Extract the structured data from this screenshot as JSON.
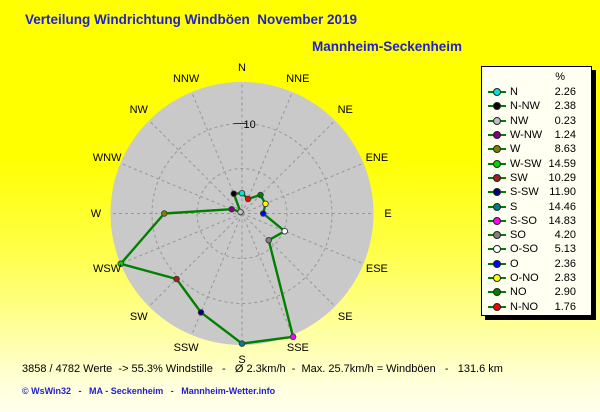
{
  "title": "Verteilung Windrichtung Windböen  November 2019",
  "subtitle": "Mannheim-Seckenheim",
  "legend": {
    "header": "%"
  },
  "status_line": "3858 / 4782 Werte  -> 55.3% Windstille   -   Ø 2.3km/h  -  Max. 25.7km/h = Windböen   -   131.6 km",
  "copyright_line": "© WsWin32   -   MA - Seckenheim   -   Mannheim-Wetter.info",
  "colors": {
    "background_top": "#FFFF00",
    "background_bottom": "#FFFFEC",
    "title_blue": "#2121CB",
    "plot_disc": "#C9C9C9",
    "grid": "#979797",
    "polygon_green": "#008000",
    "legend_bg": "#FFFFF2"
  },
  "chart_data": {
    "type": "radar",
    "title": "Verteilung Windrichtung Windböen November 2019",
    "location": "Mannheim-Seckenheim",
    "unit": "%",
    "rmax": 15,
    "grid_circles": [
      5,
      10
    ],
    "r_tick_value": 10,
    "r_tick_label": "10",
    "axis_labels": [
      "N",
      "NNE",
      "NE",
      "ENE",
      "E",
      "ESE",
      "SE",
      "SSE",
      "S",
      "SSW",
      "SW",
      "WSW",
      "W",
      "WNW",
      "NW",
      "NNW"
    ],
    "series": [
      {
        "label": "N",
        "angle_deg": 0.0,
        "value": 2.26,
        "color": "#00E0E0"
      },
      {
        "label": "N-NW",
        "angle_deg": 337.5,
        "value": 2.38,
        "color": "#000000"
      },
      {
        "label": "NW",
        "angle_deg": 315.0,
        "value": 0.23,
        "color": "#C0C0C0"
      },
      {
        "label": "W-NW",
        "angle_deg": 292.5,
        "value": 1.24,
        "color": "#800080"
      },
      {
        "label": "W",
        "angle_deg": 270.0,
        "value": 8.63,
        "color": "#808000"
      },
      {
        "label": "W-SW",
        "angle_deg": 247.5,
        "value": 14.59,
        "color": "#00D800"
      },
      {
        "label": "SW",
        "angle_deg": 225.0,
        "value": 10.29,
        "color": "#A02020"
      },
      {
        "label": "S-SW",
        "angle_deg": 202.5,
        "value": 11.9,
        "color": "#000080"
      },
      {
        "label": "S",
        "angle_deg": 180.0,
        "value": 14.46,
        "color": "#008080"
      },
      {
        "label": "S-SO",
        "angle_deg": 157.5,
        "value": 14.83,
        "color": "#FF00FF"
      },
      {
        "label": "SO",
        "angle_deg": 135.0,
        "value": 4.2,
        "color": "#808080"
      },
      {
        "label": "O-SO",
        "angle_deg": 112.5,
        "value": 5.13,
        "color": "#FFFFFF"
      },
      {
        "label": "O",
        "angle_deg": 90.0,
        "value": 2.36,
        "color": "#0000FF"
      },
      {
        "label": "O-NO",
        "angle_deg": 67.5,
        "value": 2.83,
        "color": "#FFFF00"
      },
      {
        "label": "NO",
        "angle_deg": 45.0,
        "value": 2.9,
        "color": "#008000"
      },
      {
        "label": "N-NO",
        "angle_deg": 22.5,
        "value": 1.76,
        "color": "#FF0000"
      }
    ]
  }
}
